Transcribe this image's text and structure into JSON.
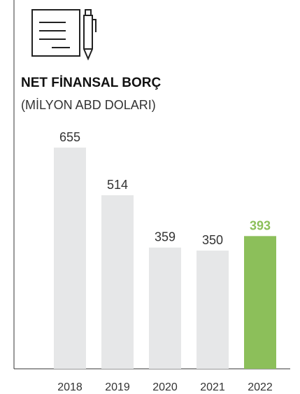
{
  "chart_data": {
    "type": "bar",
    "title": "NET FİNANSAL BORÇ",
    "subtitle": "(MİLYON ABD DOLARI)",
    "categories": [
      "2018",
      "2019",
      "2020",
      "2021",
      "2022"
    ],
    "values": [
      655,
      514,
      359,
      350,
      393
    ],
    "colors": [
      "#e6e7e8",
      "#e6e7e8",
      "#e6e7e8",
      "#e6e7e8",
      "#8cbf5a"
    ],
    "value_label_colors": [
      "#333333",
      "#333333",
      "#333333",
      "#333333",
      "#8cbf5a"
    ]
  }
}
